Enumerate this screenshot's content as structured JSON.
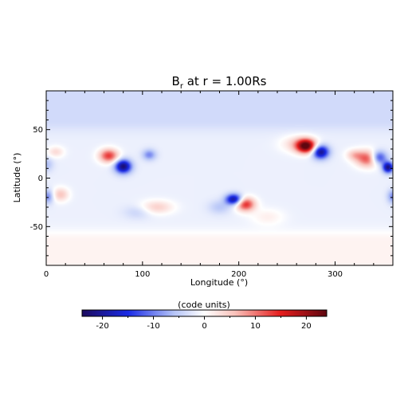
{
  "chart_data": [
    {
      "type": "heatmap",
      "title_main": "B",
      "title_sub": "r",
      "title_rest": " at r = 1.00Rs",
      "xlabel": "Longitude (°)",
      "ylabel": "Latitude (°)",
      "xlim": [
        0,
        360
      ],
      "ylim": [
        -90,
        90
      ],
      "x_ticks": [
        0,
        100,
        200,
        300
      ],
      "y_ticks": [
        -50,
        0,
        50
      ],
      "background_value": -1.5,
      "bands": [
        {
          "lat_from": 60,
          "lat_to": 90,
          "value": -4
        },
        {
          "lat_from": -90,
          "lat_to": -65,
          "value": 1.5
        }
      ],
      "features": [
        {
          "lon": 270,
          "lat": 33,
          "value": 24,
          "sigma_lon": 7,
          "sigma_lat": 5
        },
        {
          "lon": 285,
          "lat": 27,
          "value": -20,
          "sigma_lon": 6,
          "sigma_lat": 5
        },
        {
          "lon": 262,
          "lat": 35,
          "value": 6,
          "sigma_lon": 12,
          "sigma_lat": 6
        },
        {
          "lon": 80,
          "lat": 12,
          "value": -21,
          "sigma_lon": 6,
          "sigma_lat": 5
        },
        {
          "lon": 65,
          "lat": 23,
          "value": 15,
          "sigma_lon": 7,
          "sigma_lat": 5
        },
        {
          "lon": 107,
          "lat": 24,
          "value": -8,
          "sigma_lon": 5,
          "sigma_lat": 4
        },
        {
          "lon": 10,
          "lat": 27,
          "value": 5,
          "sigma_lon": 6,
          "sigma_lat": 4
        },
        {
          "lon": 0,
          "lat": 14,
          "value": -5,
          "sigma_lon": 5,
          "sigma_lat": 5
        },
        {
          "lon": 335,
          "lat": 20,
          "value": 15,
          "sigma_lon": 9,
          "sigma_lat": 6
        },
        {
          "lon": 345,
          "lat": 21,
          "value": -17,
          "sigma_lon": 6,
          "sigma_lat": 5
        },
        {
          "lon": 355,
          "lat": 11,
          "value": -20,
          "sigma_lon": 4,
          "sigma_lat": 4
        },
        {
          "lon": 320,
          "lat": 24,
          "value": 6,
          "sigma_lon": 6,
          "sigma_lat": 4
        },
        {
          "lon": 2,
          "lat": -19,
          "value": -8,
          "sigma_lon": 4,
          "sigma_lat": 5
        },
        {
          "lon": 360,
          "lat": -19,
          "value": -8,
          "sigma_lon": 4,
          "sigma_lat": 5
        },
        {
          "lon": 15,
          "lat": -17,
          "value": 7,
          "sigma_lon": 6,
          "sigma_lat": 5
        },
        {
          "lon": 195,
          "lat": -22,
          "value": -19,
          "sigma_lon": 6,
          "sigma_lat": 4
        },
        {
          "lon": 207,
          "lat": -27,
          "value": 16,
          "sigma_lon": 7,
          "sigma_lat": 5
        },
        {
          "lon": 115,
          "lat": -30,
          "value": 6,
          "sigma_lon": 12,
          "sigma_lat": 5
        },
        {
          "lon": 95,
          "lat": -35,
          "value": -3,
          "sigma_lon": 10,
          "sigma_lat": 5
        },
        {
          "lon": 180,
          "lat": -30,
          "value": -4,
          "sigma_lon": 8,
          "sigma_lat": 5
        },
        {
          "lon": 230,
          "lat": -40,
          "value": 3,
          "sigma_lon": 12,
          "sigma_lat": 6
        }
      ],
      "colormap": [
        {
          "value": -24,
          "color": "#1b0a5e"
        },
        {
          "value": -15,
          "color": "#1a2be6"
        },
        {
          "value": -6,
          "color": "#b5c4f7"
        },
        {
          "value": 0,
          "color": "#ffffff"
        },
        {
          "value": 6,
          "color": "#f9c2bb"
        },
        {
          "value": 15,
          "color": "#e51c1c"
        },
        {
          "value": 24,
          "color": "#5f0710"
        }
      ]
    },
    {
      "type": "colorbar",
      "label": "(code units)",
      "range": [
        -24,
        24
      ],
      "ticks": [
        -20,
        -10,
        0,
        10,
        20
      ]
    }
  ]
}
